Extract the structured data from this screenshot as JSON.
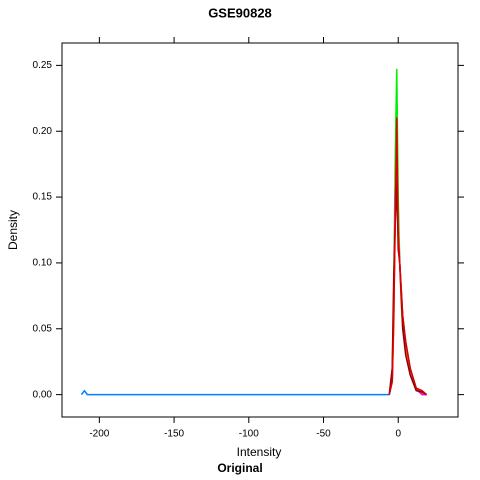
{
  "chart_data": {
    "type": "line",
    "title": "GSE90828",
    "subtitle": "Original",
    "x_label": "Intensity",
    "y_label": "Density",
    "x": [
      -212,
      -210,
      -208,
      -205,
      -150,
      -100,
      -50,
      -6,
      -4,
      -3,
      -2,
      -1,
      0,
      1,
      2,
      3,
      5,
      8,
      12,
      16,
      19
    ],
    "series": [
      {
        "color": "#0080ff",
        "values": [
          0,
          0.003,
          0,
          0,
          0,
          0,
          0,
          0,
          0.01,
          0.06,
          0.15,
          0.17,
          0.14,
          0.1,
          0.08,
          0.06,
          0.04,
          0.02,
          0.005,
          0,
          0
        ]
      },
      {
        "color": "#00ee00",
        "values": [
          null,
          null,
          null,
          null,
          null,
          null,
          null,
          0,
          0.02,
          0.08,
          0.18,
          0.247,
          0.15,
          0.1,
          0.08,
          0.06,
          0.04,
          0.02,
          0.005,
          0.001,
          0
        ]
      },
      {
        "color": "#ff8000",
        "values": [
          null,
          null,
          null,
          null,
          null,
          null,
          null,
          0,
          0.01,
          0.05,
          0.14,
          0.2,
          0.13,
          0.1,
          0.07,
          0.05,
          0.035,
          0.015,
          0.004,
          0,
          0
        ]
      },
      {
        "color": "#ff00ff",
        "values": [
          null,
          null,
          null,
          null,
          null,
          null,
          null,
          0,
          0.01,
          0.07,
          0.15,
          0.18,
          0.12,
          0.1,
          0.08,
          0.055,
          0.04,
          0.02,
          0.004,
          0,
          0
        ]
      },
      {
        "color": "#8b0000",
        "values": [
          null,
          null,
          null,
          null,
          null,
          null,
          null,
          0,
          0.02,
          0.09,
          0.13,
          0.16,
          0.11,
          0.1,
          0.075,
          0.05,
          0.03,
          0.015,
          0.003,
          0.002,
          0
        ]
      },
      {
        "color": "#dd0000",
        "values": [
          null,
          null,
          null,
          null,
          null,
          null,
          null,
          0,
          0.01,
          0.06,
          0.13,
          0.21,
          0.12,
          0.1,
          0.08,
          0.06,
          0.04,
          0.02,
          0.005,
          0.003,
          0
        ]
      }
    ],
    "xlim": [
      -225,
      40
    ],
    "ylim": [
      -0.017,
      0.267
    ],
    "xticks": [
      -200,
      -150,
      -100,
      -50,
      0
    ],
    "yticks": [
      {
        "value": 0,
        "label": "0.00"
      },
      0.05,
      {
        "value": 0.1,
        "label": "0.10"
      },
      0.15,
      {
        "value": 0.2,
        "label": "0.20"
      },
      0.25
    ]
  }
}
